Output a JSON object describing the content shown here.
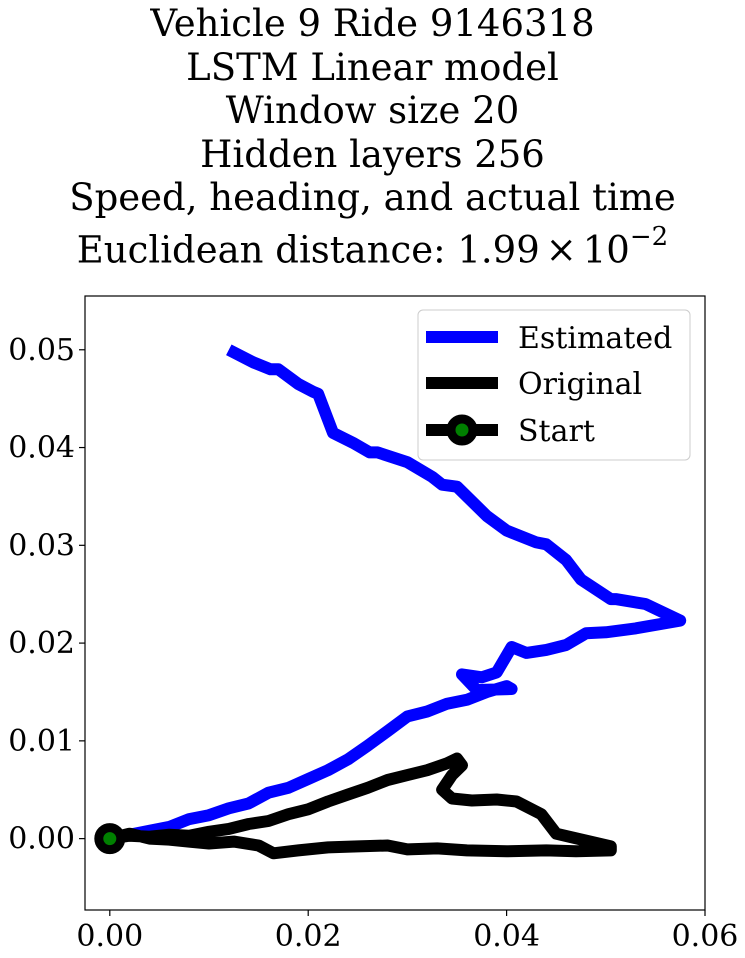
{
  "title_lines": [
    "Vehicle 9 Ride 9146318",
    "LSTM Linear model",
    "Window size 20",
    "Hidden layers 256",
    "Speed, heading, and actual time"
  ],
  "title_distance": {
    "prefix": "Euclidean distance: 1.99",
    "times": "×",
    "base": "10",
    "exponent": "−2"
  },
  "chart_data": {
    "type": "line",
    "xlim": [
      -0.0025,
      0.06
    ],
    "ylim": [
      -0.0073,
      0.0555
    ],
    "xticks": [
      {
        "value": 0.0,
        "label": "0.00"
      },
      {
        "value": 0.02,
        "label": "0.02"
      },
      {
        "value": 0.04,
        "label": "0.04"
      },
      {
        "value": 0.06,
        "label": "0.06"
      }
    ],
    "yticks": [
      {
        "value": 0.0,
        "label": "0.00"
      },
      {
        "value": 0.01,
        "label": "0.01"
      },
      {
        "value": 0.02,
        "label": "0.02"
      },
      {
        "value": 0.03,
        "label": "0.03"
      },
      {
        "value": 0.04,
        "label": "0.04"
      },
      {
        "value": 0.05,
        "label": "0.05"
      }
    ],
    "legend_position": "top-right",
    "series": [
      {
        "name": "Estimated",
        "color": "#0000ff",
        "x": [
          0.0,
          0.004,
          0.006,
          0.008,
          0.01,
          0.012,
          0.014,
          0.016,
          0.018,
          0.02,
          0.022,
          0.024,
          0.026,
          0.028,
          0.03,
          0.032,
          0.034,
          0.036,
          0.038,
          0.04,
          0.0405,
          0.037,
          0.0355,
          0.0375,
          0.039,
          0.0405,
          0.042,
          0.044,
          0.046,
          0.048,
          0.05,
          0.053,
          0.0575,
          0.054,
          0.051,
          0.0505,
          0.0475,
          0.046,
          0.044,
          0.043,
          0.04,
          0.038,
          0.035,
          0.0335,
          0.0325,
          0.03,
          0.027,
          0.0262,
          0.0245,
          0.0225,
          0.021,
          0.0205,
          0.019,
          0.017,
          0.0162,
          0.0145,
          0.012
        ],
        "y": [
          0.0,
          0.0008,
          0.0012,
          0.002,
          0.0024,
          0.0031,
          0.0036,
          0.0047,
          0.0052,
          0.0061,
          0.007,
          0.0081,
          0.0095,
          0.011,
          0.0125,
          0.013,
          0.0138,
          0.0142,
          0.015,
          0.0156,
          0.0153,
          0.0152,
          0.0168,
          0.0165,
          0.017,
          0.0196,
          0.019,
          0.0193,
          0.0198,
          0.021,
          0.0211,
          0.0215,
          0.0223,
          0.024,
          0.0245,
          0.0245,
          0.0265,
          0.0285,
          0.0301,
          0.0303,
          0.0315,
          0.033,
          0.036,
          0.0362,
          0.037,
          0.0385,
          0.0395,
          0.0395,
          0.0405,
          0.0415,
          0.0455,
          0.0457,
          0.0465,
          0.048,
          0.048,
          0.0487,
          0.05
        ]
      },
      {
        "name": "Original",
        "color": "#000000",
        "x": [
          0.0,
          0.002,
          0.004,
          0.006,
          0.008,
          0.01,
          0.012,
          0.014,
          0.016,
          0.018,
          0.02,
          0.022,
          0.024,
          0.026,
          0.028,
          0.03,
          0.032,
          0.034,
          0.035,
          0.0355,
          0.0345,
          0.0335,
          0.0345,
          0.0365,
          0.039,
          0.041,
          0.0435,
          0.045,
          0.048,
          0.0505,
          0.0505,
          0.047,
          0.044,
          0.04,
          0.036,
          0.033,
          0.03,
          0.028,
          0.025,
          0.022,
          0.019,
          0.0165,
          0.015,
          0.0125,
          0.01,
          0.008,
          0.006,
          0.004,
          0.002,
          0.0
        ],
        "y": [
          0.0,
          0.0003,
          0.0002,
          0.0004,
          0.0003,
          0.0007,
          0.001,
          0.0015,
          0.0018,
          0.0025,
          0.003,
          0.0038,
          0.0045,
          0.0052,
          0.006,
          0.0065,
          0.007,
          0.0077,
          0.0082,
          0.0075,
          0.0065,
          0.005,
          0.0041,
          0.0039,
          0.004,
          0.0038,
          0.0025,
          0.0005,
          -0.0002,
          -0.0008,
          -0.0012,
          -0.0013,
          -0.0012,
          -0.0013,
          -0.0012,
          -0.001,
          -0.0011,
          -0.0007,
          -0.0008,
          -0.0009,
          -0.0012,
          -0.0015,
          -0.0007,
          -0.0003,
          -0.0005,
          -0.0003,
          -0.0001,
          0.0,
          0.0005,
          0.0
        ]
      }
    ],
    "start": {
      "name": "Start",
      "x": 0.0,
      "y": 0.0,
      "face_color": "#008000",
      "edge_color": "#000000"
    }
  }
}
